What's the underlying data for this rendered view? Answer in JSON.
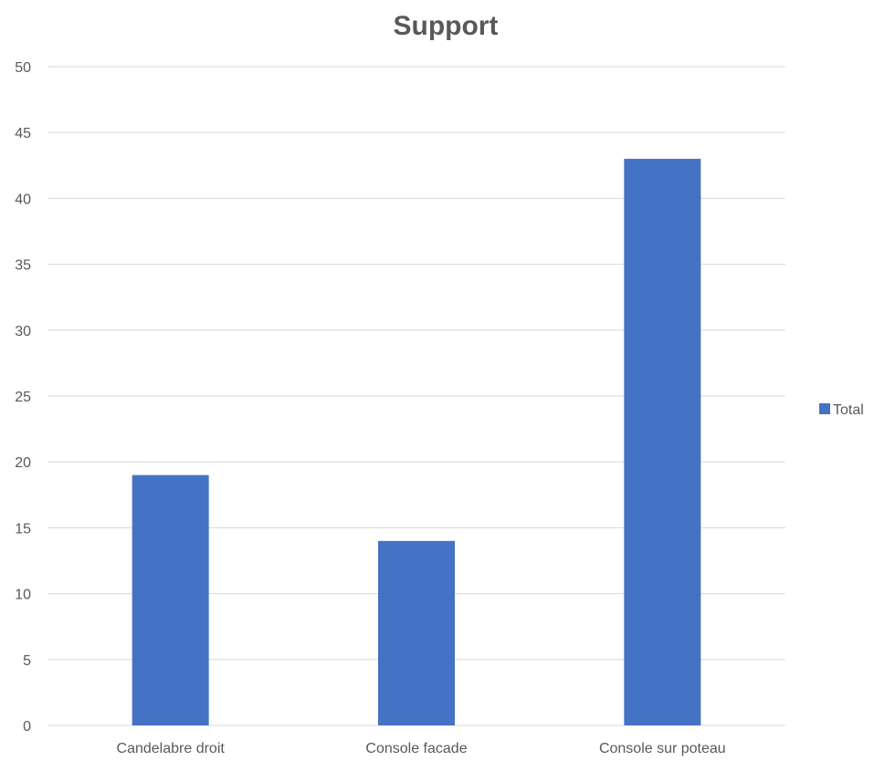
{
  "chart_data": {
    "type": "bar",
    "title": "Support",
    "categories": [
      "Candelabre droit",
      "Console facade",
      "Console sur poteau"
    ],
    "series": [
      {
        "name": "Total",
        "values": [
          19,
          14,
          43
        ],
        "color": "#4472C4"
      }
    ],
    "ylim": [
      0,
      50
    ],
    "yticks": [
      0,
      5,
      10,
      15,
      20,
      25,
      30,
      35,
      40,
      45,
      50
    ],
    "grid": true,
    "legend_position": "right",
    "gridline_color": "#D9D9D9",
    "text_color": "#595959"
  }
}
